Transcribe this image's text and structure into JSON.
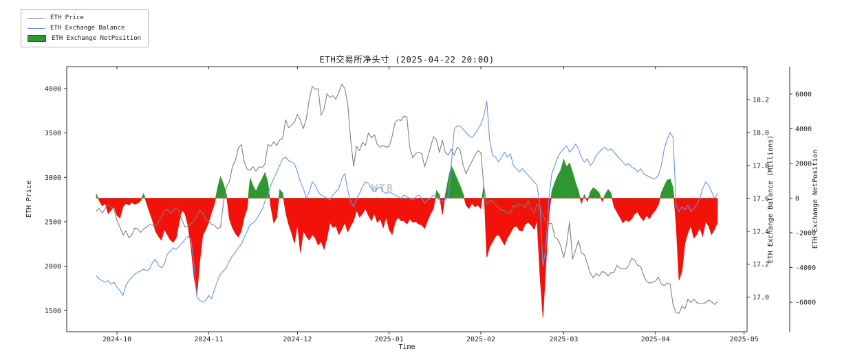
{
  "figure": {
    "title": "ETH交易所净头寸 (2025-04-22 20:00)",
    "watermark": "WTR",
    "background": "#ffffff"
  },
  "legend": {
    "items": [
      {
        "label": "ETH Price",
        "color": "#7f7f7f",
        "type": "line"
      },
      {
        "label": "ETH Exchange Balance",
        "color": "#6495ed",
        "type": "line"
      },
      {
        "label": "ETH Exchange NetPosition",
        "color": "#2e9732",
        "type": "patch"
      }
    ]
  },
  "axes": {
    "x": {
      "label": "Time",
      "min": "2024-09-14",
      "max": "2025-05-02",
      "ticks": [
        {
          "date": "2024-10-01",
          "label": "2024-10"
        },
        {
          "date": "2024-11-01",
          "label": "2024-11"
        },
        {
          "date": "2024-12-01",
          "label": "2024-12"
        },
        {
          "date": "2025-01-01",
          "label": "2025-01"
        },
        {
          "date": "2025-02-01",
          "label": "2025-02"
        },
        {
          "date": "2025-03-01",
          "label": "2025-03"
        },
        {
          "date": "2025-04-01",
          "label": "2025-04"
        },
        {
          "date": "2025-05-01",
          "label": "2025-05"
        }
      ]
    },
    "y_price": {
      "label": "ETH Price",
      "lim": [
        1263,
        4247
      ],
      "ticks": [
        1500,
        2000,
        2500,
        3000,
        3500,
        4000
      ]
    },
    "y_balance": {
      "label": "ETH Exchange Balance (Millions)",
      "lim": [
        16.79,
        18.4
      ],
      "ticks": [
        17.0,
        17.2,
        17.4,
        17.6,
        17.8,
        18.0,
        18.2
      ]
    },
    "y_netpos": {
      "label": "ETH Exchange NetPosition",
      "lim": [
        -7700,
        7580
      ],
      "ticks": [
        -6000,
        -4000,
        -2000,
        0,
        2000,
        4000,
        6000
      ]
    }
  },
  "chart_data": {
    "type": "combo: two line series + signed area series, shared time axis",
    "x_start": "2024-09-24",
    "x_freq_days": 1,
    "x_end": "2025-04-22",
    "series": [
      {
        "name": "ETH Price",
        "axis": "y_price",
        "style": "line",
        "color": "#7f7f7f",
        "values": [
          2620,
          2650,
          2600,
          2650,
          2700,
          2660,
          2640,
          2510,
          2440,
          2350,
          2400,
          2320,
          2350,
          2430,
          2420,
          2380,
          2420,
          2440,
          2470,
          2460,
          2450,
          2500,
          2550,
          2620,
          2640,
          2600,
          2630,
          2660,
          2620,
          2520,
          2440,
          2450,
          2480,
          2510,
          2570,
          2630,
          2600,
          2520,
          2510,
          2470,
          2460,
          2420,
          2440,
          2720,
          2900,
          2950,
          3120,
          3190,
          3330,
          3370,
          3180,
          3090,
          3080,
          3120,
          3070,
          3120,
          3110,
          3150,
          3370,
          3350,
          3400,
          3360,
          3420,
          3440,
          3650,
          3560,
          3590,
          3620,
          3710,
          3640,
          3550,
          3660,
          3880,
          4025,
          3990,
          4000,
          3700,
          3770,
          3940,
          3900,
          3920,
          3880,
          3960,
          4050,
          4000,
          3830,
          3420,
          3125,
          3350,
          3300,
          3395,
          3360,
          3500,
          3445,
          3480,
          3370,
          3340,
          3360,
          3340,
          3350,
          3460,
          3620,
          3650,
          3640,
          3690,
          3680,
          3330,
          3220,
          3270,
          3280,
          3270,
          3120,
          3220,
          3340,
          3460,
          3420,
          3280,
          3420,
          3280,
          3250,
          3320,
          3250,
          3340,
          3310,
          3140,
          3040,
          3120,
          3180,
          3250,
          3300,
          3280,
          2900,
          2700,
          2730,
          2740,
          2690,
          2660,
          2630,
          2630,
          2600,
          2600,
          2680,
          2670,
          2700,
          2690,
          2660,
          2740,
          2650,
          2600,
          2700,
          2640,
          2580,
          2500,
          2480,
          2480,
          2330,
          2300,
          2230,
          2100,
          2250,
          2500,
          2080,
          2180,
          2290,
          2150,
          2130,
          2030,
          1920,
          1870,
          1920,
          1890,
          1940,
          1930,
          1890,
          1930,
          1930,
          2010,
          1980,
          1970,
          1970,
          2010,
          2090,
          2070,
          2010,
          2000,
          1900,
          1830,
          1810,
          1820,
          1830,
          1880,
          1800,
          1780,
          1810,
          1800,
          1560,
          1480,
          1470,
          1550,
          1520,
          1630,
          1590,
          1630,
          1590,
          1580,
          1580,
          1590,
          1620,
          1600,
          1570,
          1600
        ]
      },
      {
        "name": "ETH Exchange Balance",
        "axis": "y_balance",
        "style": "line",
        "color": "#6495ed",
        "values": [
          17.13,
          17.11,
          17.1,
          17.09,
          17.1,
          17.08,
          17.09,
          17.06,
          17.04,
          17.01,
          17.07,
          17.1,
          17.12,
          17.14,
          17.15,
          17.16,
          17.17,
          17.16,
          17.17,
          17.21,
          17.23,
          17.19,
          17.18,
          17.2,
          17.26,
          17.28,
          17.3,
          17.29,
          17.31,
          17.33,
          17.35,
          17.37,
          17.35,
          17.2,
          17.0,
          16.98,
          16.97,
          16.98,
          17.01,
          16.99,
          17.05,
          17.1,
          17.14,
          17.16,
          17.18,
          17.22,
          17.25,
          17.27,
          17.3,
          17.32,
          17.36,
          17.4,
          17.44,
          17.45,
          17.47,
          17.5,
          17.53,
          17.58,
          17.62,
          17.68,
          17.72,
          17.76,
          17.8,
          17.84,
          17.85,
          17.83,
          17.82,
          17.81,
          17.76,
          17.7,
          17.66,
          17.6,
          17.64,
          17.7,
          17.68,
          17.64,
          17.62,
          17.61,
          17.6,
          17.59,
          17.62,
          17.64,
          17.66,
          17.72,
          17.75,
          17.65,
          17.58,
          17.55,
          17.6,
          17.63,
          17.67,
          17.7,
          17.69,
          17.66,
          17.64,
          17.66,
          17.67,
          17.64,
          17.63,
          17.64,
          17.63,
          17.62,
          17.61,
          17.6,
          17.62,
          17.61,
          17.6,
          17.59,
          17.61,
          17.62,
          17.6,
          17.57,
          17.59,
          17.6,
          17.62,
          17.61,
          17.59,
          17.58,
          17.59,
          17.61,
          17.8,
          18.02,
          18.04,
          18.04,
          18.02,
          18.0,
          17.98,
          17.97,
          17.99,
          18.02,
          18.05,
          18.1,
          18.19,
          17.95,
          17.86,
          17.85,
          17.82,
          17.85,
          17.88,
          17.85,
          17.87,
          17.8,
          17.78,
          17.76,
          17.78,
          17.76,
          17.74,
          17.72,
          17.7,
          17.68,
          17.55,
          17.19,
          17.3,
          17.6,
          17.75,
          17.8,
          17.85,
          17.88,
          17.9,
          17.92,
          17.88,
          17.9,
          17.93,
          17.9,
          17.85,
          17.82,
          17.84,
          17.8,
          17.82,
          17.86,
          17.88,
          17.9,
          17.91,
          17.89,
          17.9,
          17.88,
          17.86,
          17.84,
          17.82,
          17.8,
          17.81,
          17.79,
          17.78,
          17.76,
          17.78,
          17.75,
          17.74,
          17.73,
          17.72,
          17.72,
          17.74,
          17.8,
          17.9,
          17.96,
          18.0,
          17.97,
          17.56,
          17.52,
          17.55,
          17.53,
          17.56,
          17.52,
          17.54,
          17.56,
          17.6,
          17.66,
          17.7,
          17.68,
          17.64,
          17.6,
          17.63
        ]
      },
      {
        "name": "ETH Exchange NetPosition",
        "axis": "y_netpos",
        "style": "area",
        "positive_color": "#2e9732",
        "negative_color": "#f31209",
        "values": [
          250,
          -150,
          -450,
          -300,
          -900,
          -700,
          -500,
          -1000,
          -1150,
          -500,
          -300,
          -400,
          -250,
          -350,
          -300,
          -150,
          260,
          -300,
          -800,
          -1300,
          -1900,
          -2200,
          -2430,
          -1800,
          -2100,
          -2400,
          -2550,
          -2300,
          -1400,
          -700,
          -900,
          -1600,
          -2800,
          -4500,
          -5600,
          -3600,
          -2150,
          -1800,
          -1400,
          -800,
          -300,
          600,
          1230,
          800,
          200,
          -1200,
          -1700,
          -2030,
          -2250,
          -1900,
          -1100,
          -600,
          1150,
          700,
          400,
          800,
          1100,
          1470,
          900,
          -500,
          -1430,
          -1100,
          500,
          300,
          -800,
          -1500,
          -2000,
          -2600,
          -1500,
          -3140,
          -1900,
          -2200,
          -2430,
          -2100,
          -2300,
          -2700,
          -2500,
          -2950,
          -2300,
          -1400,
          -1700,
          -1600,
          -2100,
          -1800,
          -1400,
          -1950,
          -1600,
          -1300,
          -700,
          -1100,
          -900,
          -600,
          -1000,
          -1300,
          -900,
          -1400,
          -1200,
          -1700,
          -1100,
          -1800,
          -2100,
          -1400,
          -1100,
          -1300,
          -1310,
          -1500,
          -1200,
          -1400,
          -1350,
          -1500,
          -1550,
          -1750,
          -1300,
          -900,
          -600,
          430,
          200,
          -960,
          200,
          1100,
          1870,
          1500,
          1100,
          700,
          250,
          -400,
          -600,
          -300,
          -500,
          -400,
          -600,
          800,
          -3420,
          -2800,
          -2500,
          -2200,
          -2100,
          -2400,
          -2700,
          -2300,
          -2000,
          -1700,
          -1600,
          -1850,
          -1900,
          -1500,
          -1400,
          -1550,
          -1800,
          -1300,
          -4500,
          -6890,
          -3800,
          -1000,
          400,
          900,
          1300,
          1600,
          2230,
          1800,
          2030,
          1500,
          900,
          400,
          -300,
          200,
          -200,
          360,
          600,
          480,
          300,
          -200,
          200,
          500,
          300,
          -500,
          -800,
          -1100,
          -1430,
          -1250,
          -1350,
          -1200,
          -900,
          -800,
          -1100,
          -1300,
          -1000,
          -1200,
          -900,
          -700,
          -400,
          300,
          700,
          1030,
          1100,
          600,
          -1500,
          -4740,
          -4200,
          -2600,
          -2000,
          -1600,
          -2300,
          -2100,
          -1700,
          -2200,
          -1350,
          -1600,
          -2100,
          -1800,
          -1400
        ]
      }
    ]
  }
}
